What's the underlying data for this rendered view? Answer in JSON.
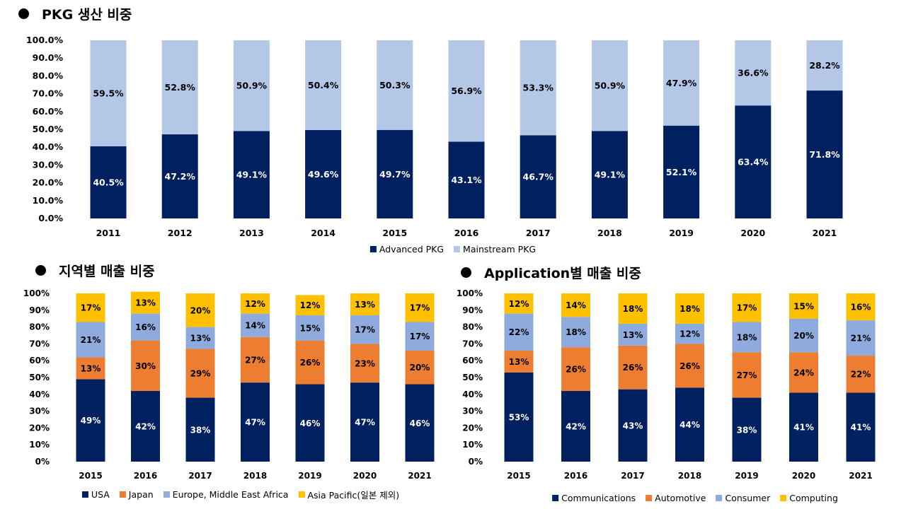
{
  "chart_data": [
    {
      "id": "pkg",
      "type": "bar",
      "stacked": true,
      "title": "PKG 생산 비중",
      "categories": [
        "2011",
        "2012",
        "2013",
        "2014",
        "2015",
        "2016",
        "2017",
        "2018",
        "2019",
        "2020",
        "2021"
      ],
      "ylim": [
        0,
        100
      ],
      "yticks": [
        "0.0%",
        "10.0%",
        "20.0%",
        "30.0%",
        "40.0%",
        "50.0%",
        "60.0%",
        "70.0%",
        "80.0%",
        "90.0%",
        "100.0%"
      ],
      "decimals": 1,
      "grid": false,
      "legend": "bottom",
      "series": [
        {
          "name": "Advanced PKG",
          "color": "#002060",
          "label_color": "#ffffff",
          "values": [
            40.5,
            47.2,
            49.1,
            49.6,
            49.7,
            43.1,
            46.7,
            49.1,
            52.1,
            63.4,
            71.8
          ]
        },
        {
          "name": "Mainstream PKG",
          "color": "#B4C7E7",
          "label_color": "#000000",
          "values": [
            59.5,
            52.8,
            50.9,
            50.4,
            50.3,
            56.9,
            53.3,
            50.9,
            47.9,
            36.6,
            28.2
          ]
        }
      ]
    },
    {
      "id": "region",
      "type": "bar",
      "stacked": true,
      "title": "지역별 매출 비중",
      "categories": [
        "2015",
        "2016",
        "2017",
        "2018",
        "2019",
        "2020",
        "2021"
      ],
      "ylim": [
        0,
        100
      ],
      "yticks": [
        "0%",
        "10%",
        "20%",
        "30%",
        "40%",
        "50%",
        "60%",
        "70%",
        "80%",
        "90%",
        "100%"
      ],
      "decimals": 0,
      "grid": false,
      "legend": "bottom",
      "series": [
        {
          "name": "USA",
          "color": "#002060",
          "label_color": "#ffffff",
          "values": [
            49,
            42,
            38,
            47,
            46,
            47,
            46
          ]
        },
        {
          "name": "Japan",
          "color": "#ED7D31",
          "label_color": "#000000",
          "values": [
            13,
            30,
            29,
            27,
            26,
            23,
            20
          ]
        },
        {
          "name": "Europe, Middle East Africa",
          "color": "#8FAADC",
          "label_color": "#000000",
          "values": [
            21,
            16,
            13,
            14,
            15,
            17,
            17
          ]
        },
        {
          "name": "Asia Pacific(일본 제외)",
          "color": "#FFC000",
          "label_color": "#000000",
          "values": [
            17,
            13,
            20,
            12,
            12,
            13,
            17
          ]
        }
      ]
    },
    {
      "id": "app",
      "type": "bar",
      "stacked": true,
      "title": "Application별 매출 비중",
      "categories": [
        "2015",
        "2016",
        "2017",
        "2018",
        "2019",
        "2020",
        "2021"
      ],
      "ylim": [
        0,
        100
      ],
      "yticks": [
        "0%",
        "10%",
        "20%",
        "30%",
        "40%",
        "50%",
        "60%",
        "70%",
        "80%",
        "90%",
        "100%"
      ],
      "decimals": 0,
      "grid": false,
      "legend": "bottom",
      "series": [
        {
          "name": "Communications",
          "color": "#002060",
          "label_color": "#ffffff",
          "values": [
            53,
            42,
            43,
            44,
            38,
            41,
            41
          ]
        },
        {
          "name": "Automotive",
          "color": "#ED7D31",
          "label_color": "#000000",
          "values": [
            13,
            26,
            26,
            26,
            27,
            24,
            22
          ]
        },
        {
          "name": "Consumer",
          "color": "#8FAADC",
          "label_color": "#000000",
          "values": [
            22,
            18,
            13,
            12,
            18,
            20,
            21
          ]
        },
        {
          "name": "Computing",
          "color": "#FFC000",
          "label_color": "#000000",
          "values": [
            12,
            14,
            18,
            18,
            17,
            15,
            16
          ]
        }
      ]
    }
  ]
}
